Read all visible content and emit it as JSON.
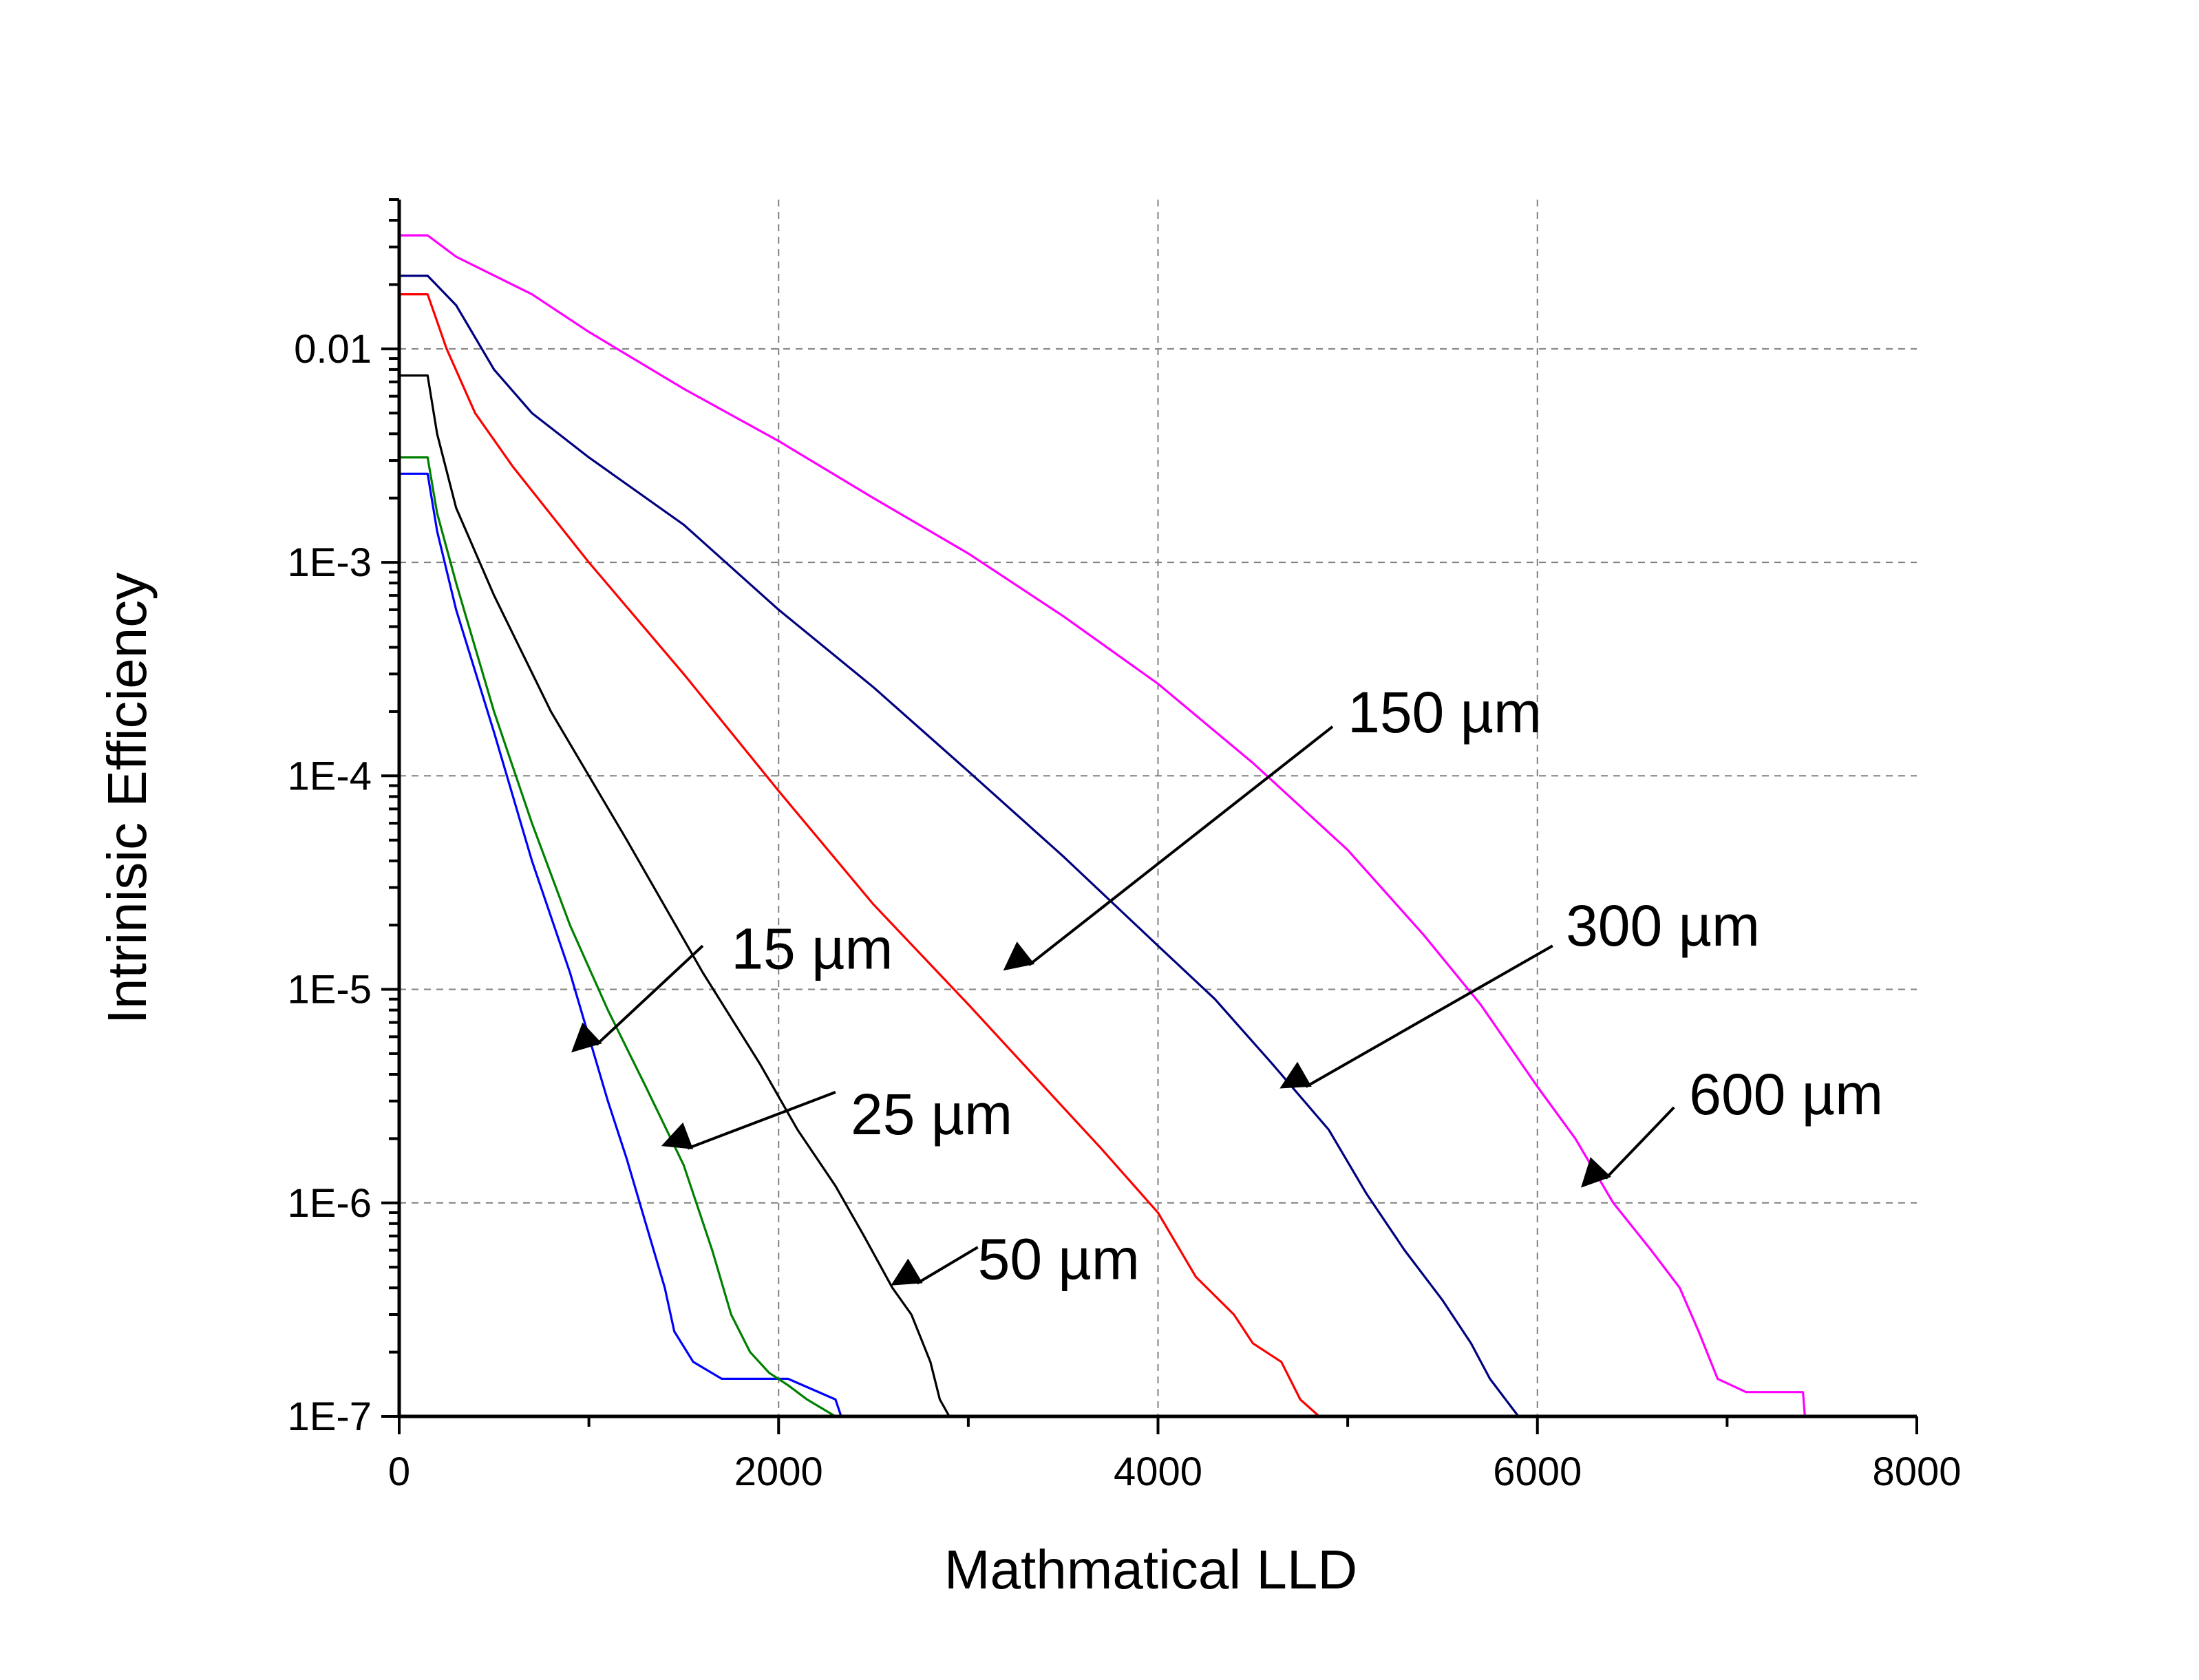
{
  "chart_data": {
    "type": "line",
    "title": "",
    "xlabel": "Mathmatical LLD",
    "ylabel": "Intrinisic Efficiency",
    "xlim": [
      0,
      8000
    ],
    "ylim": [
      1e-07,
      0.05
    ],
    "yscale": "log",
    "grid": true,
    "legend": "none",
    "x_ticks": [
      {
        "value": 0,
        "label": "0"
      },
      {
        "value": 2000,
        "label": "2000"
      },
      {
        "value": 4000,
        "label": "4000"
      },
      {
        "value": 6000,
        "label": "6000"
      },
      {
        "value": 8000,
        "label": "8000"
      }
    ],
    "y_ticks": [
      {
        "value": 0.01,
        "label": "0.01"
      },
      {
        "value": 0.001,
        "label": "1E-3"
      },
      {
        "value": 0.0001,
        "label": "1E-4"
      },
      {
        "value": 1e-05,
        "label": "1E-5"
      },
      {
        "value": 1e-06,
        "label": "1E-6"
      },
      {
        "value": 1e-07,
        "label": "1E-7"
      }
    ],
    "series": [
      {
        "color": "#0000ff",
        "points": [
          [
            0,
            0.0026
          ],
          [
            150,
            0.0026
          ],
          [
            200,
            0.0014
          ],
          [
            300,
            0.0006
          ],
          [
            500,
            0.00016
          ],
          [
            700,
            4e-05
          ],
          [
            900,
            1.2e-05
          ],
          [
            1000,
            6e-06
          ],
          [
            1100,
            3e-06
          ],
          [
            1200,
            1.6e-06
          ],
          [
            1300,
            8e-07
          ],
          [
            1400,
            4e-07
          ],
          [
            1450,
            2.5e-07
          ],
          [
            1550,
            1.8e-07
          ],
          [
            1700,
            1.5e-07
          ],
          [
            1900,
            1.5e-07
          ],
          [
            2050,
            1.5e-07
          ],
          [
            2300,
            1.2e-07
          ],
          [
            2330,
            1e-07
          ],
          [
            2600,
            1e-07
          ]
        ]
      },
      {
        "color": "#008000",
        "points": [
          [
            0,
            0.0031
          ],
          [
            150,
            0.0031
          ],
          [
            200,
            0.0017
          ],
          [
            300,
            0.0008
          ],
          [
            500,
            0.0002
          ],
          [
            700,
            6e-05
          ],
          [
            900,
            2e-05
          ],
          [
            1100,
            8e-06
          ],
          [
            1300,
            3.5e-06
          ],
          [
            1500,
            1.5e-06
          ],
          [
            1650,
            6e-07
          ],
          [
            1750,
            3e-07
          ],
          [
            1850,
            2e-07
          ],
          [
            1950,
            1.6e-07
          ],
          [
            2050,
            1.4e-07
          ],
          [
            2150,
            1.2e-07
          ],
          [
            2300,
            1e-07
          ]
        ]
      },
      {
        "color": "#000000",
        "points": [
          [
            0,
            0.0075
          ],
          [
            150,
            0.0075
          ],
          [
            200,
            0.004
          ],
          [
            300,
            0.0018
          ],
          [
            500,
            0.0007
          ],
          [
            800,
            0.0002
          ],
          [
            1200,
            5e-05
          ],
          [
            1600,
            1.2e-05
          ],
          [
            1900,
            4.5e-06
          ],
          [
            2100,
            2.2e-06
          ],
          [
            2300,
            1.2e-06
          ],
          [
            2450,
            7e-07
          ],
          [
            2600,
            4e-07
          ],
          [
            2700,
            3e-07
          ],
          [
            2800,
            1.8e-07
          ],
          [
            2850,
            1.2e-07
          ],
          [
            2900,
            1e-07
          ]
        ]
      },
      {
        "color": "#ff0000",
        "points": [
          [
            0,
            0.018
          ],
          [
            150,
            0.018
          ],
          [
            250,
            0.01
          ],
          [
            400,
            0.005
          ],
          [
            600,
            0.0028
          ],
          [
            1000,
            0.001
          ],
          [
            1500,
            0.0003
          ],
          [
            2000,
            8.5e-05
          ],
          [
            2500,
            2.5e-05
          ],
          [
            3000,
            8.5e-06
          ],
          [
            3400,
            3.5e-06
          ],
          [
            3700,
            1.8e-06
          ],
          [
            4000,
            9e-07
          ],
          [
            4200,
            4.5e-07
          ],
          [
            4400,
            3e-07
          ],
          [
            4500,
            2.2e-07
          ],
          [
            4650,
            1.8e-07
          ],
          [
            4750,
            1.2e-07
          ],
          [
            4850,
            1e-07
          ]
        ]
      },
      {
        "color": "#000080",
        "points": [
          [
            0,
            0.022
          ],
          [
            150,
            0.022
          ],
          [
            300,
            0.016
          ],
          [
            500,
            0.008
          ],
          [
            700,
            0.005
          ],
          [
            1000,
            0.0031
          ],
          [
            1500,
            0.0015
          ],
          [
            2000,
            0.0006
          ],
          [
            2500,
            0.00026
          ],
          [
            3000,
            0.000105
          ],
          [
            3500,
            4.2e-05
          ],
          [
            4000,
            1.6e-05
          ],
          [
            4300,
            9e-06
          ],
          [
            4600,
            4.5e-06
          ],
          [
            4900,
            2.2e-06
          ],
          [
            5100,
            1.1e-06
          ],
          [
            5300,
            6e-07
          ],
          [
            5500,
            3.5e-07
          ],
          [
            5650,
            2.2e-07
          ],
          [
            5750,
            1.5e-07
          ],
          [
            5900,
            1e-07
          ],
          [
            6100,
            1e-07
          ]
        ]
      },
      {
        "color": "#ff00ff",
        "points": [
          [
            0,
            0.034
          ],
          [
            150,
            0.034
          ],
          [
            300,
            0.027
          ],
          [
            700,
            0.018
          ],
          [
            1000,
            0.012
          ],
          [
            1500,
            0.0065
          ],
          [
            2000,
            0.0037
          ],
          [
            2500,
            0.002
          ],
          [
            3000,
            0.0011
          ],
          [
            3500,
            0.00056
          ],
          [
            4000,
            0.00027
          ],
          [
            4500,
            0.000115
          ],
          [
            5000,
            4.5e-05
          ],
          [
            5400,
            1.8e-05
          ],
          [
            5700,
            8.5e-06
          ],
          [
            6000,
            3.5e-06
          ],
          [
            6200,
            2e-06
          ],
          [
            6400,
            1e-06
          ],
          [
            6600,
            6e-07
          ],
          [
            6750,
            4e-07
          ],
          [
            6850,
            2.5e-07
          ],
          [
            6950,
            1.5e-07
          ],
          [
            7100,
            1.3e-07
          ],
          [
            7400,
            1.3e-07
          ],
          [
            7410,
            1e-07
          ]
        ]
      }
    ],
    "annotations": [
      {
        "id": "15",
        "label": "15 µm",
        "text_at": [
          1750,
          1.25e-05
        ],
        "anchor": "start",
        "arrow_from": [
          1600,
          1.6e-05
        ],
        "arrow_to": [
          1040,
          5.5e-06
        ]
      },
      {
        "id": "25",
        "label": "25 µm",
        "text_at": [
          2380,
          2.1e-06
        ],
        "anchor": "start",
        "arrow_from": [
          2300,
          3.3e-06
        ],
        "arrow_to": [
          1520,
          1.8e-06
        ]
      },
      {
        "id": "50",
        "label": "50 µm",
        "text_at": [
          3050,
          4.4e-07
        ],
        "anchor": "start",
        "arrow_from": [
          3050,
          6.2e-07
        ],
        "arrow_to": [
          2730,
          4.2e-07
        ]
      },
      {
        "id": "150",
        "label": "150 µm",
        "text_at": [
          5000,
          0.00016
        ],
        "anchor": "start",
        "arrow_from": [
          4920,
          0.00017
        ],
        "arrow_to": [
          3320,
          1.3e-05
        ]
      },
      {
        "id": "300",
        "label": "300 µm",
        "text_at": [
          6150,
          1.6e-05
        ],
        "anchor": "start",
        "arrow_from": [
          6080,
          1.6e-05
        ],
        "arrow_to": [
          4780,
          3.5e-06
        ]
      },
      {
        "id": "600",
        "label": "600 µm",
        "text_at": [
          6800,
          2.6e-06
        ],
        "anchor": "start",
        "arrow_from": [
          6720,
          2.8e-06
        ],
        "arrow_to": [
          6360,
          1.3e-06
        ]
      }
    ]
  }
}
